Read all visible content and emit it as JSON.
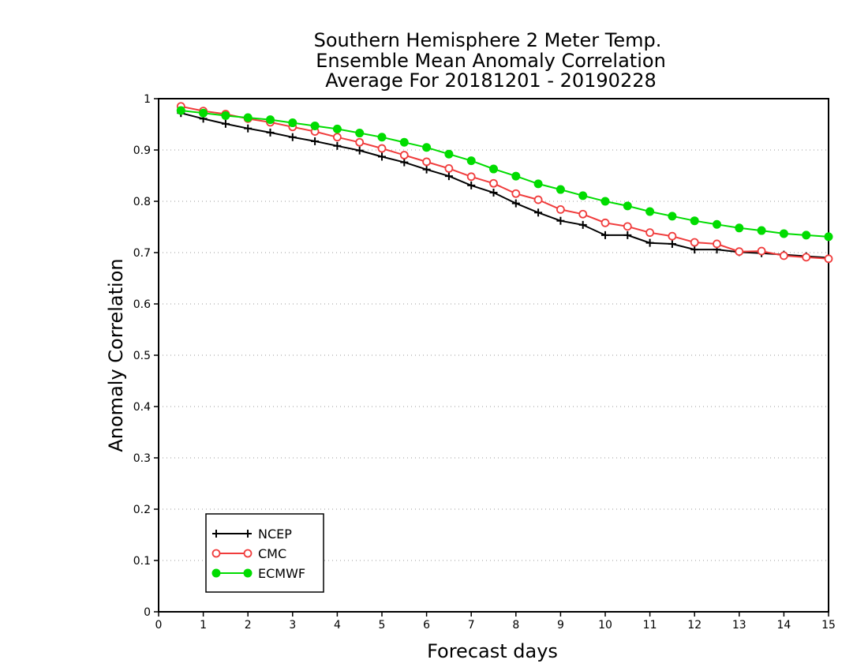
{
  "chart_data": {
    "type": "line",
    "title_lines": [
      "Southern Hemisphere 2 Meter Temp.",
      "Ensemble Mean Anomaly Correlation",
      "Average For 20181201 - 20190228"
    ],
    "xlabel": "Forecast days",
    "ylabel": "Anomaly Correlation",
    "xlim": [
      0,
      15
    ],
    "ylim": [
      0,
      1
    ],
    "x_ticks": [
      "0",
      "1",
      "2",
      "3",
      "4",
      "5",
      "6",
      "7",
      "8",
      "9",
      "10",
      "11",
      "12",
      "13",
      "14",
      "15"
    ],
    "y_ticks": [
      "0",
      "0.1",
      "0.2",
      "0.3",
      "0.4",
      "0.5",
      "0.6",
      "0.7",
      "0.8",
      "0.9",
      "1"
    ],
    "grid": "horizontal dotted",
    "legend_position": "bottom-left",
    "x": [
      0.5,
      1,
      1.5,
      2,
      2.5,
      3,
      3.5,
      4,
      4.5,
      5,
      5.5,
      6,
      6.5,
      7,
      7.5,
      8,
      8.5,
      9,
      9.5,
      10,
      10.5,
      11,
      11.5,
      12,
      12.5,
      13,
      13.5,
      14,
      14.5,
      15
    ],
    "series": [
      {
        "name": "NCEP",
        "color": "#000000",
        "marker": "plus",
        "values": [
          0.972,
          0.961,
          0.951,
          0.942,
          0.934,
          0.925,
          0.917,
          0.908,
          0.899,
          0.887,
          0.876,
          0.862,
          0.849,
          0.831,
          0.817,
          0.796,
          0.778,
          0.762,
          0.754,
          0.734,
          0.734,
          0.719,
          0.717,
          0.706,
          0.706,
          0.701,
          0.699,
          0.696,
          0.693,
          0.69
        ]
      },
      {
        "name": "CMC",
        "color": "#f03c3c",
        "marker": "open-circle",
        "values": [
          0.985,
          0.976,
          0.97,
          0.961,
          0.954,
          0.945,
          0.936,
          0.925,
          0.915,
          0.903,
          0.89,
          0.877,
          0.864,
          0.848,
          0.835,
          0.815,
          0.803,
          0.784,
          0.775,
          0.758,
          0.751,
          0.739,
          0.732,
          0.72,
          0.717,
          0.702,
          0.703,
          0.694,
          0.691,
          0.688
        ]
      },
      {
        "name": "ECMWF",
        "color": "#00dc00",
        "marker": "filled-circle",
        "values": [
          0.977,
          0.972,
          0.967,
          0.963,
          0.959,
          0.953,
          0.947,
          0.941,
          0.933,
          0.925,
          0.915,
          0.905,
          0.892,
          0.879,
          0.863,
          0.849,
          0.834,
          0.823,
          0.811,
          0.8,
          0.791,
          0.78,
          0.771,
          0.762,
          0.755,
          0.748,
          0.743,
          0.737,
          0.734,
          0.731
        ]
      }
    ]
  }
}
